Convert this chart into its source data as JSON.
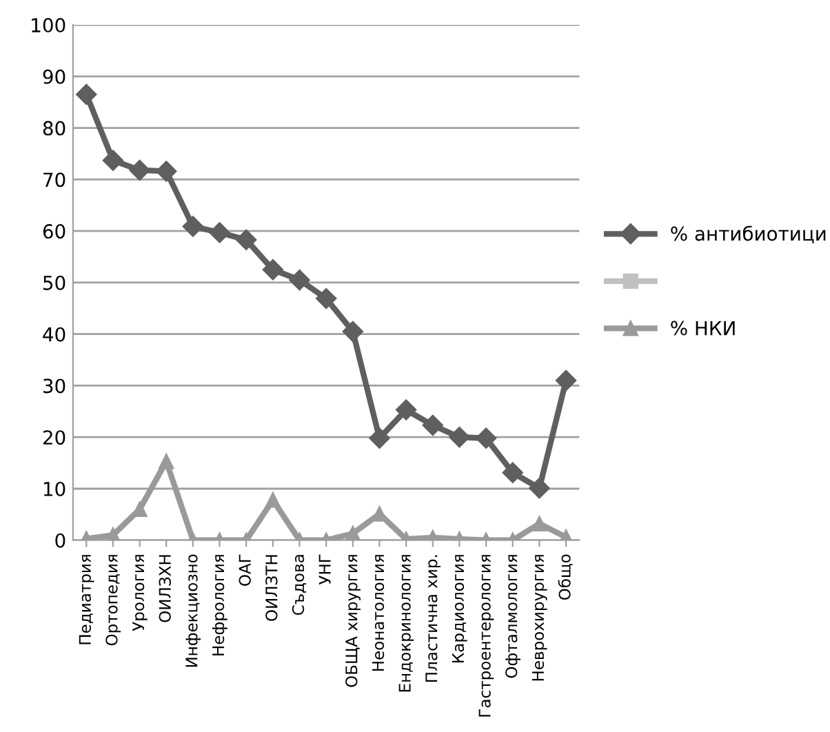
{
  "chart_data": {
    "type": "line",
    "categories": [
      "Педиатрия",
      "Ортопедия",
      "Урология",
      "ОИЛЗХН",
      "Инфекциозно",
      "Нефрология",
      "ОАГ",
      "ОИЛЗТН",
      "Съдова",
      "УНГ",
      "ОБЩА хирургия",
      "Неонатология",
      "Ендокринология",
      "Пластична хир.",
      "Кардиология",
      "Гастроентерология",
      "Офталмология",
      "Неврохирургия",
      "Общо"
    ],
    "series": [
      {
        "name": "% антибиотици",
        "color": "#5f5f5f",
        "marker": "diamond",
        "values": [
          86.5,
          73.7,
          71.8,
          71.6,
          60.9,
          59.7,
          58.3,
          52.5,
          50.5,
          46.9,
          40.5,
          19.8,
          25.3,
          22.3,
          20.0,
          19.8,
          13.1,
          10.1,
          31.0
        ]
      },
      {
        "color": "#c0c0c0",
        "marker": "square",
        "values": [
          null,
          null,
          null,
          null,
          null,
          null,
          null,
          null,
          null,
          null,
          null,
          null,
          null,
          null,
          null,
          null,
          null,
          null,
          null
        ]
      },
      {
        "name": "% НКИ",
        "color": "#9a9a9a",
        "marker": "triangle",
        "values": [
          0.3,
          1.0,
          6.0,
          15.3,
          0,
          0,
          0,
          7.8,
          0,
          0,
          1.3,
          5.1,
          0.2,
          0.5,
          0.2,
          0,
          0,
          3.2,
          0.6
        ]
      }
    ],
    "ylim": [
      0,
      100
    ],
    "yticks": [
      0,
      10,
      20,
      30,
      40,
      50,
      60,
      70,
      80,
      90,
      100
    ],
    "grid": "y",
    "legend": "right",
    "line_style": "solid"
  }
}
